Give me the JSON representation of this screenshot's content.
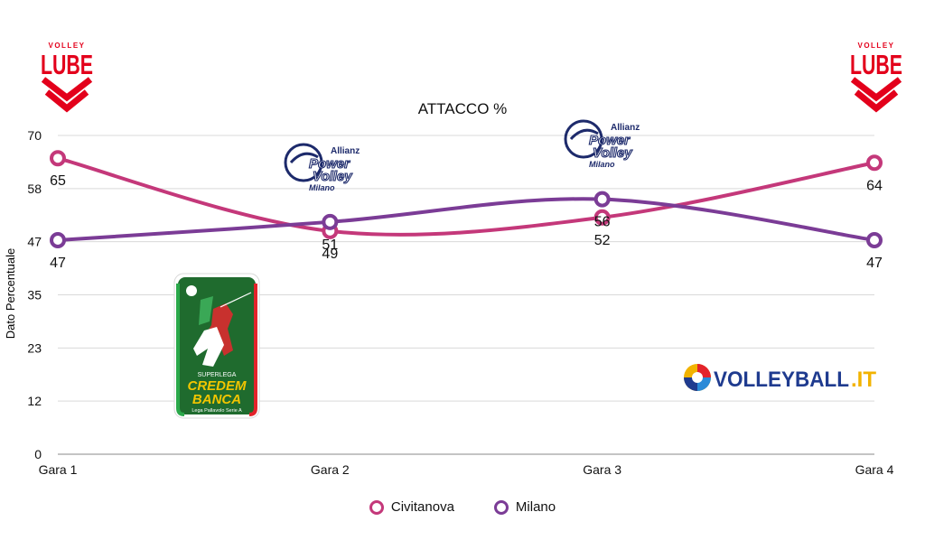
{
  "title": "ATTACCO %",
  "colors": {
    "civitanova": "#c4387a",
    "milano": "#7b3c96"
  },
  "logos": {
    "lube_left": {
      "top": "VOLLEY",
      "main": "LUBE"
    },
    "lube_right": {
      "top": "VOLLEY",
      "main": "LUBE"
    },
    "power_volley_1": {
      "allianz": "Allianz",
      "l1": "Power",
      "l2": "Volley",
      "l3": "Milano"
    },
    "power_volley_2": {
      "allianz": "Allianz",
      "l1": "Power",
      "l2": "Volley",
      "l3": "Milano"
    },
    "superlega": {
      "l1": "SUPERLEGA",
      "l2": "CREDEM",
      "l3": "BANCA",
      "l4": "Lega Pallavolo Serie A"
    },
    "volleyball_it": {
      "text": "VOLLEYBALL",
      "suffix": ".IT"
    }
  },
  "chart_data": {
    "type": "line",
    "title": "ATTACCO %",
    "xlabel": "",
    "ylabel": "Dato Percentuale",
    "categories": [
      "Gara 1",
      "Gara 2",
      "Gara 3",
      "Gara 4"
    ],
    "yticks": [
      "0",
      "12",
      "23",
      "35",
      "47",
      "58",
      "70"
    ],
    "ytick_values": [
      0,
      11.67,
      23.33,
      35,
      46.67,
      58.33,
      70
    ],
    "ylim": [
      0,
      70
    ],
    "grid": true,
    "legend_position": "bottom",
    "series": [
      {
        "name": "Civitanova",
        "values": [
          65,
          49,
          52,
          64
        ],
        "labels": [
          "65",
          "49",
          "52",
          "64"
        ]
      },
      {
        "name": "Milano",
        "values": [
          47,
          51,
          56,
          47
        ],
        "labels": [
          "47",
          "51",
          "56",
          "47"
        ]
      }
    ]
  }
}
